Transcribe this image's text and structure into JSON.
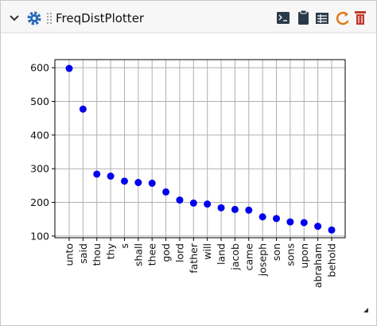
{
  "header": {
    "title": "FreqDistPlotter"
  },
  "chart_data": {
    "type": "scatter",
    "categories": [
      "unto",
      "said",
      "thou",
      "thy",
      "s",
      "shall",
      "thee",
      "god",
      "lord",
      "father",
      "will",
      "land",
      "jacob",
      "came",
      "joseph",
      "son",
      "sons",
      "upon",
      "abraham",
      "behold"
    ],
    "values": [
      598,
      477,
      284,
      278,
      263,
      259,
      257,
      231,
      207,
      198,
      195,
      184,
      179,
      177,
      157,
      152,
      142,
      140,
      129,
      118
    ],
    "color": "#0000ee",
    "ylim": [
      95,
      624
    ],
    "yticks": [
      100,
      200,
      300,
      400,
      500,
      600
    ],
    "grid": true
  }
}
